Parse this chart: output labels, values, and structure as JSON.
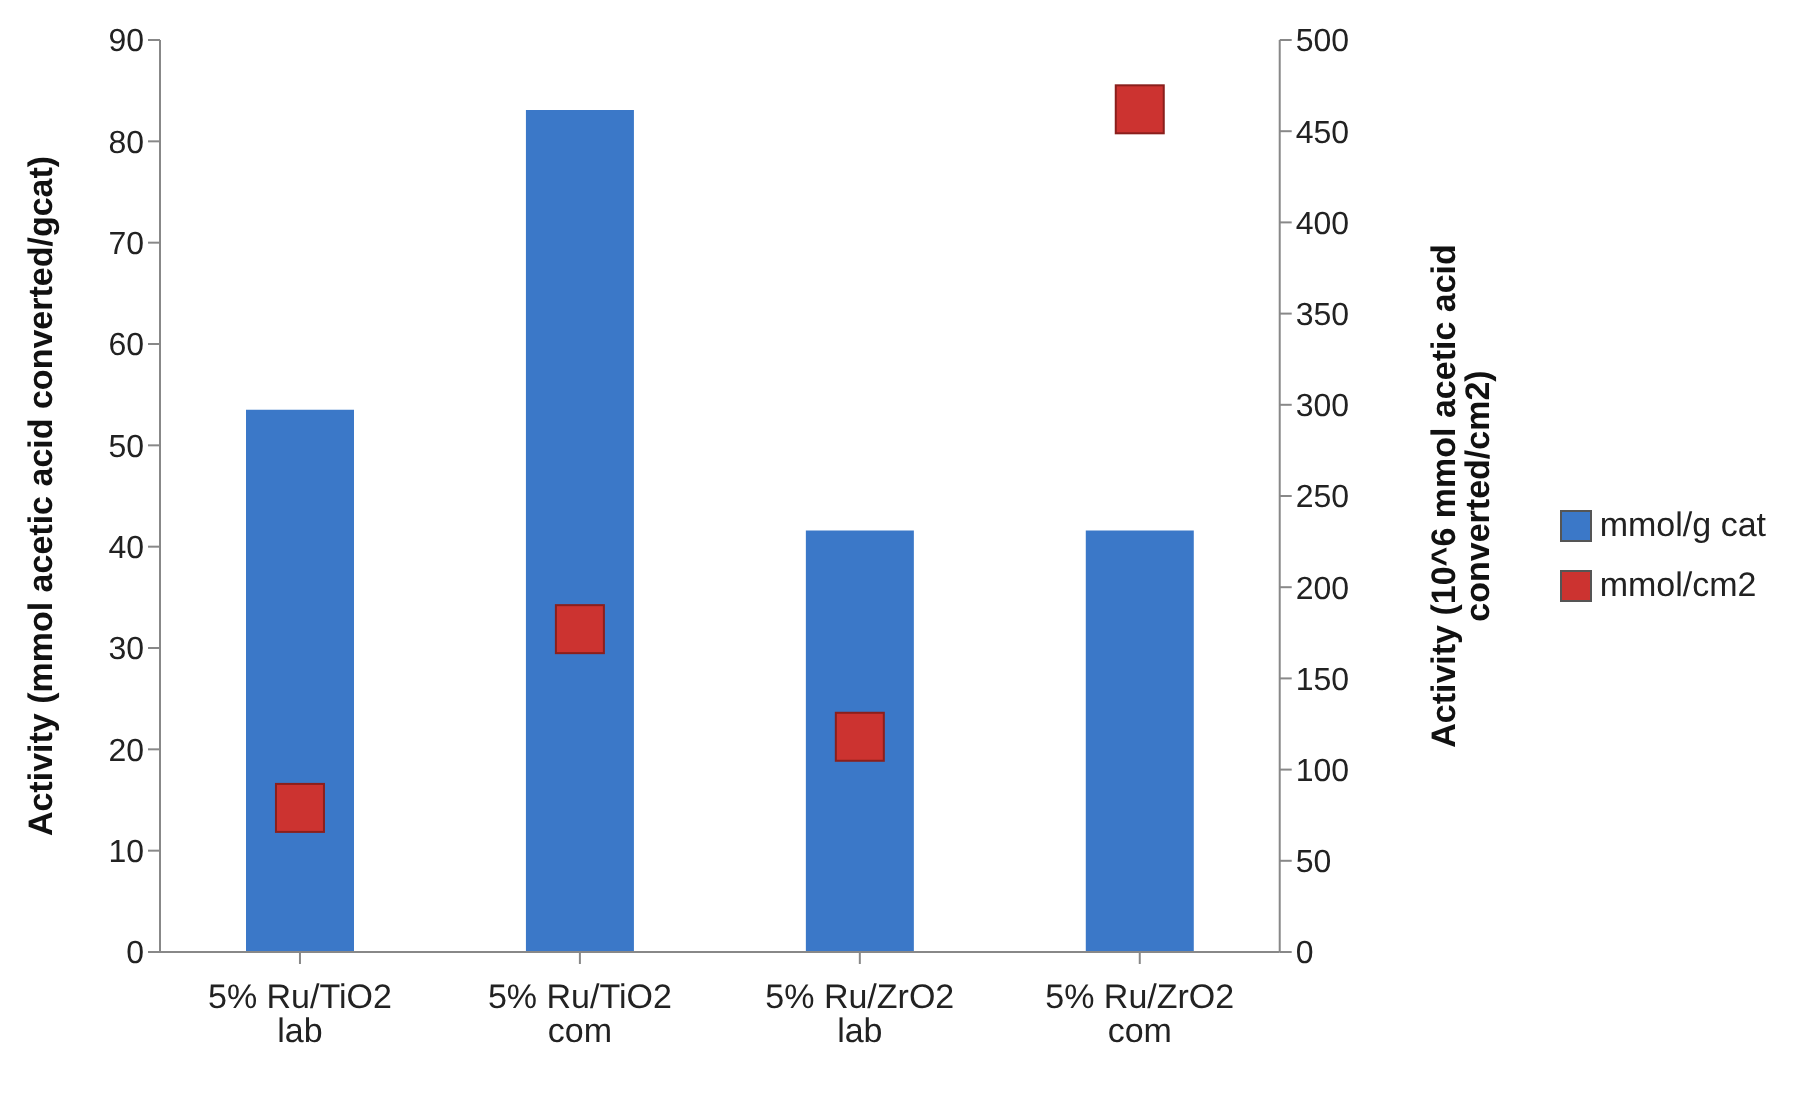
{
  "chart_data": {
    "type": "bar",
    "categories": [
      "5% Ru/TiO2 lab",
      "5% Ru/TiO2 com",
      "5% Ru/ZrO2 lab",
      "5% Ru/ZrO2 com"
    ],
    "ylabel": "Activity (mmol acetic acid converted/gcat)",
    "y2label": "Activity (10^6 mmol acetic acid converted/cm2)",
    "series": [
      {
        "name": "mmol/g cat",
        "color": "#3b78c8",
        "values": [
          53.5,
          83.1,
          41.6,
          41.6
        ]
      },
      {
        "name": "mmol/cm2",
        "type": "scatter",
        "axis": "y2",
        "color": "#cc3330",
        "values": [
          79,
          177,
          118,
          462
        ]
      }
    ],
    "ylim": [
      0,
      90
    ],
    "yticks": [
      0,
      10,
      20,
      30,
      40,
      50,
      60,
      70,
      80,
      90
    ],
    "y2lim": [
      0,
      500
    ],
    "y2ticks": [
      0,
      50,
      100,
      150,
      200,
      250,
      300,
      350,
      400,
      450,
      500
    ],
    "marker": "square",
    "grid": false,
    "legend": "right"
  }
}
